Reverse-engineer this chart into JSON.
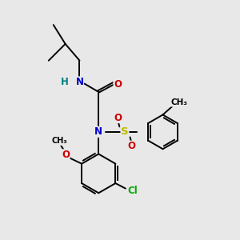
{
  "bg_color": "#e8e8e8",
  "bond_color": "#000000",
  "bond_width": 1.4,
  "atom_colors": {
    "N": "#0000cc",
    "O": "#cc0000",
    "S": "#bbbb00",
    "Cl": "#00aa00",
    "H": "#008080",
    "C": "#000000"
  },
  "font_size": 8.5,
  "fig_width": 3.0,
  "fig_height": 3.0,
  "xlim": [
    0,
    10
  ],
  "ylim": [
    0,
    10
  ]
}
